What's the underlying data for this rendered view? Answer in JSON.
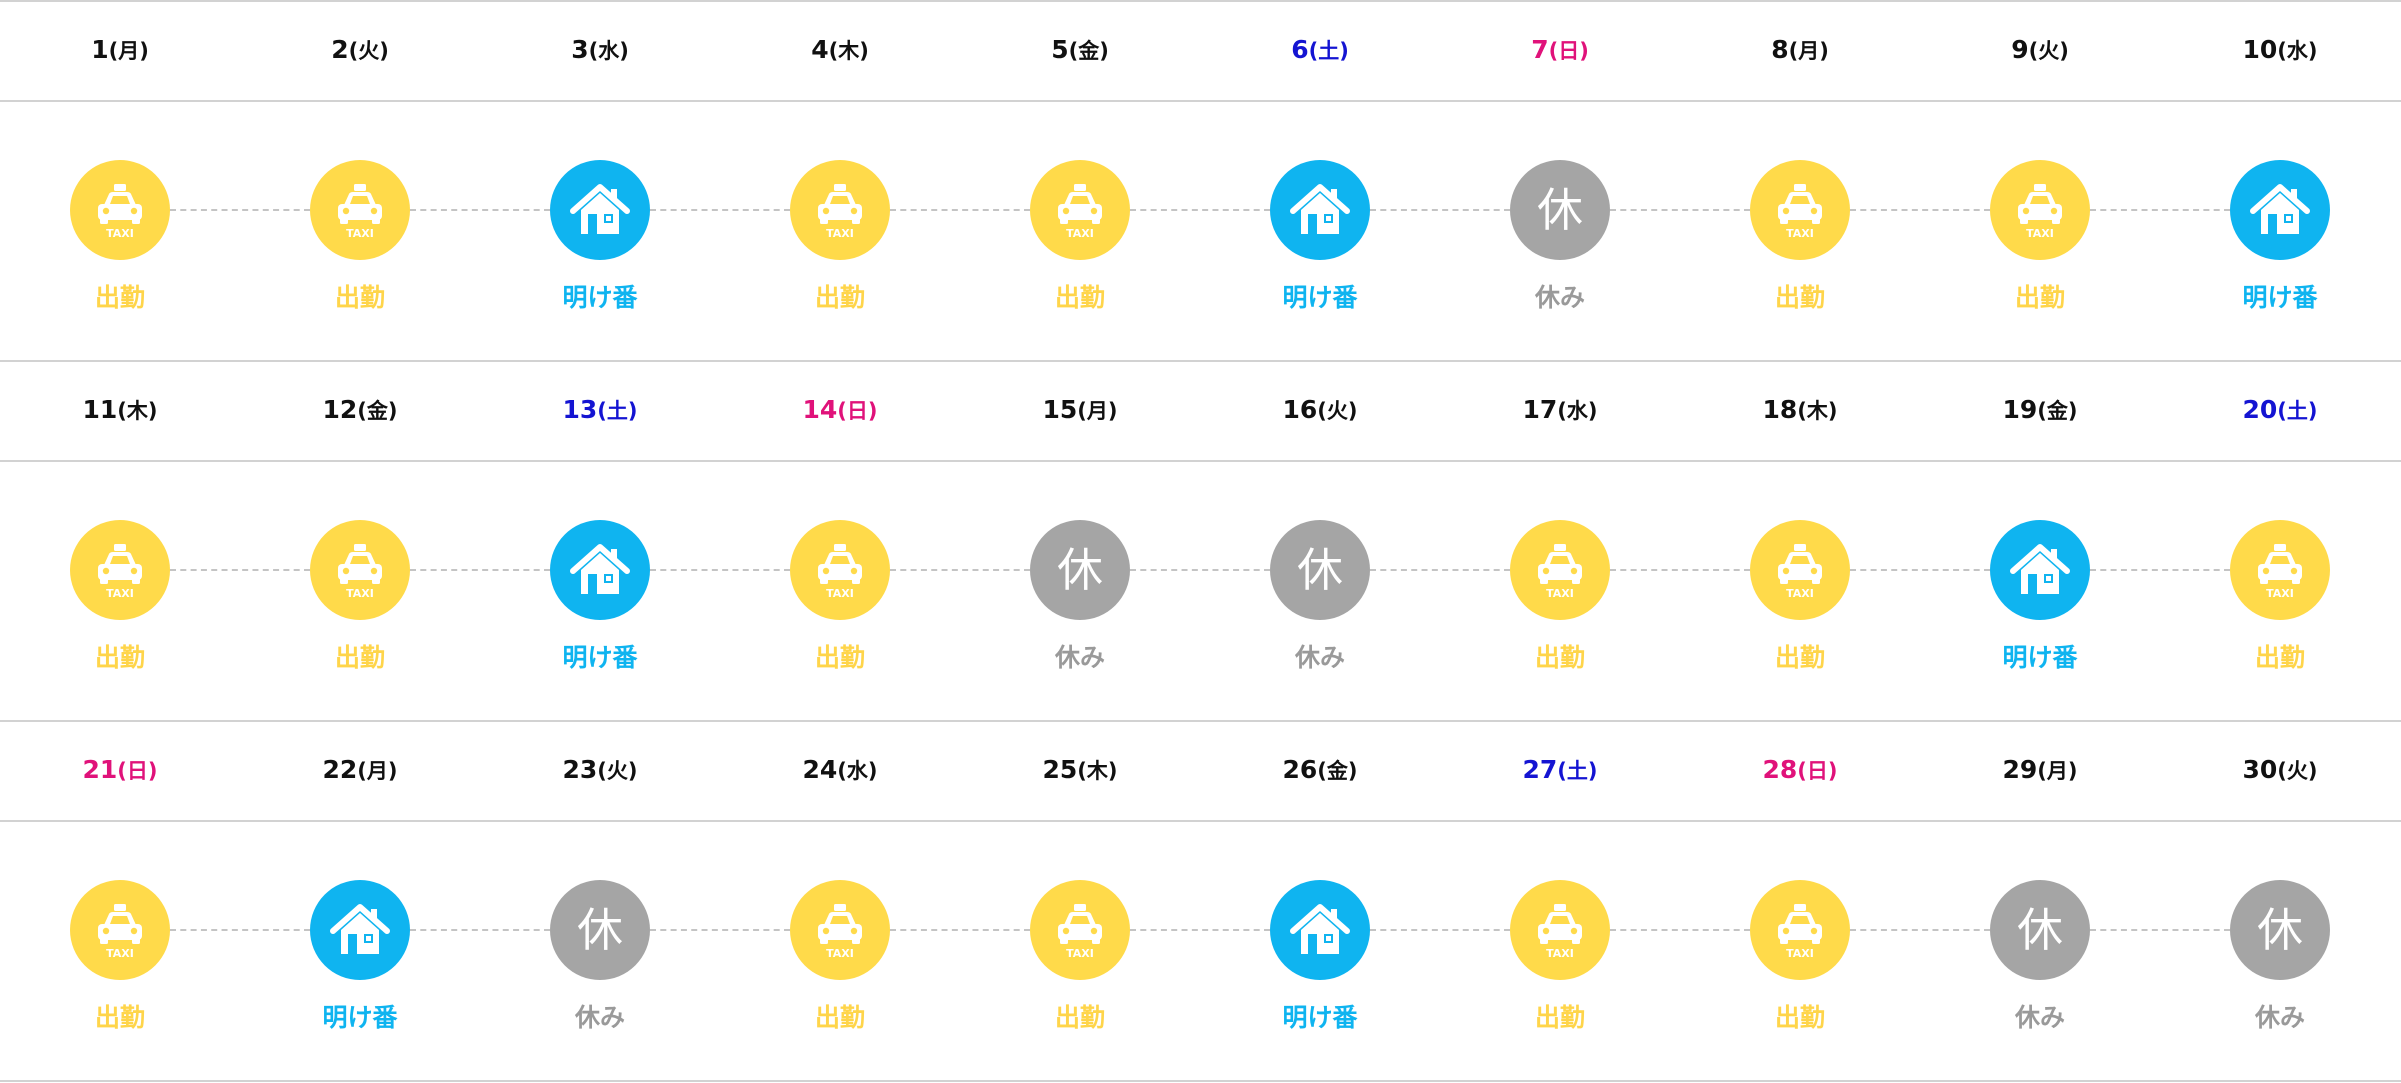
{
  "statuses": {
    "work": {
      "label": "出勤",
      "icon": "taxi-icon",
      "color": "#ffda4a",
      "icon_text": "TAXI"
    },
    "ake": {
      "label": "明け番",
      "icon": "house-icon",
      "color": "#0fb4f0"
    },
    "rest": {
      "label": "休み",
      "icon": "kyu-icon",
      "color": "#a5a5a5",
      "icon_text": "休"
    }
  },
  "weekday_colors": {
    "sat": "#1414d2",
    "sun": "#e0127a"
  },
  "days": [
    {
      "num": "1",
      "wd": "(月)",
      "status": "work"
    },
    {
      "num": "2",
      "wd": "(火)",
      "status": "work"
    },
    {
      "num": "3",
      "wd": "(水)",
      "status": "ake"
    },
    {
      "num": "4",
      "wd": "(木)",
      "status": "work"
    },
    {
      "num": "5",
      "wd": "(金)",
      "status": "work"
    },
    {
      "num": "6",
      "wd": "(土)",
      "status": "ake"
    },
    {
      "num": "7",
      "wd": "(日)",
      "status": "rest"
    },
    {
      "num": "8",
      "wd": "(月)",
      "status": "work"
    },
    {
      "num": "9",
      "wd": "(火)",
      "status": "work"
    },
    {
      "num": "10",
      "wd": "(水)",
      "status": "ake"
    },
    {
      "num": "11",
      "wd": "(木)",
      "status": "work"
    },
    {
      "num": "12",
      "wd": "(金)",
      "status": "work"
    },
    {
      "num": "13",
      "wd": "(土)",
      "status": "ake"
    },
    {
      "num": "14",
      "wd": "(日)",
      "status": "work"
    },
    {
      "num": "15",
      "wd": "(月)",
      "status": "rest"
    },
    {
      "num": "16",
      "wd": "(火)",
      "status": "rest"
    },
    {
      "num": "17",
      "wd": "(水)",
      "status": "work"
    },
    {
      "num": "18",
      "wd": "(木)",
      "status": "work"
    },
    {
      "num": "19",
      "wd": "(金)",
      "status": "ake"
    },
    {
      "num": "20",
      "wd": "(土)",
      "status": "work"
    },
    {
      "num": "21",
      "wd": "(日)",
      "status": "work"
    },
    {
      "num": "22",
      "wd": "(月)",
      "status": "ake"
    },
    {
      "num": "23",
      "wd": "(火)",
      "status": "rest"
    },
    {
      "num": "24",
      "wd": "(水)",
      "status": "work"
    },
    {
      "num": "25",
      "wd": "(木)",
      "status": "work"
    },
    {
      "num": "26",
      "wd": "(金)",
      "status": "ake"
    },
    {
      "num": "27",
      "wd": "(土)",
      "status": "work"
    },
    {
      "num": "28",
      "wd": "(日)",
      "status": "work"
    },
    {
      "num": "29",
      "wd": "(月)",
      "status": "rest"
    },
    {
      "num": "30",
      "wd": "(火)",
      "status": "rest"
    }
  ]
}
